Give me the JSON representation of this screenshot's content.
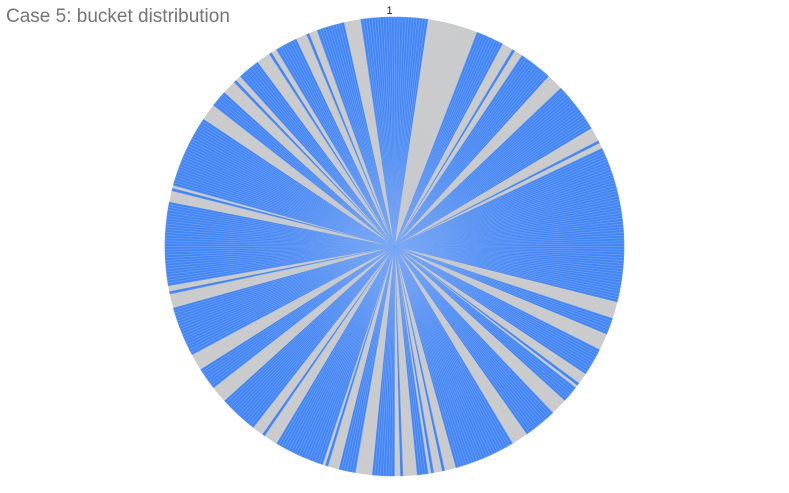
{
  "chart_data": {
    "type": "pie",
    "title": "Case 5: bucket distribution",
    "top_label": "1",
    "series": [
      {
        "color": "#4285f4"
      },
      {
        "color": "#cccccc"
      }
    ],
    "bucket_count": 512,
    "gaps": [
      [
        12,
        30,
        1
      ],
      [
        40,
        48,
        2
      ],
      [
        60,
        66,
        1
      ],
      [
        84,
        92,
        3
      ],
      [
        148,
        154,
        1
      ],
      [
        160,
        166,
        1
      ],
      [
        176,
        182,
        2
      ],
      [
        188,
        194,
        1
      ],
      [
        206,
        212,
        1
      ],
      [
        234,
        244,
        2
      ],
      [
        248,
        256,
        3
      ],
      [
        264,
        270,
        1
      ],
      [
        276,
        282,
        2
      ],
      [
        300,
        310,
        3
      ],
      [
        324,
        330,
        1
      ],
      [
        338,
        344,
        1
      ],
      [
        362,
        370,
        3
      ],
      [
        400,
        406,
        2
      ],
      [
        432,
        438,
        1
      ],
      [
        444,
        452,
        3
      ],
      [
        460,
        468,
        3
      ],
      [
        476,
        484,
        2
      ],
      [
        494,
        500,
        1
      ]
    ]
  }
}
